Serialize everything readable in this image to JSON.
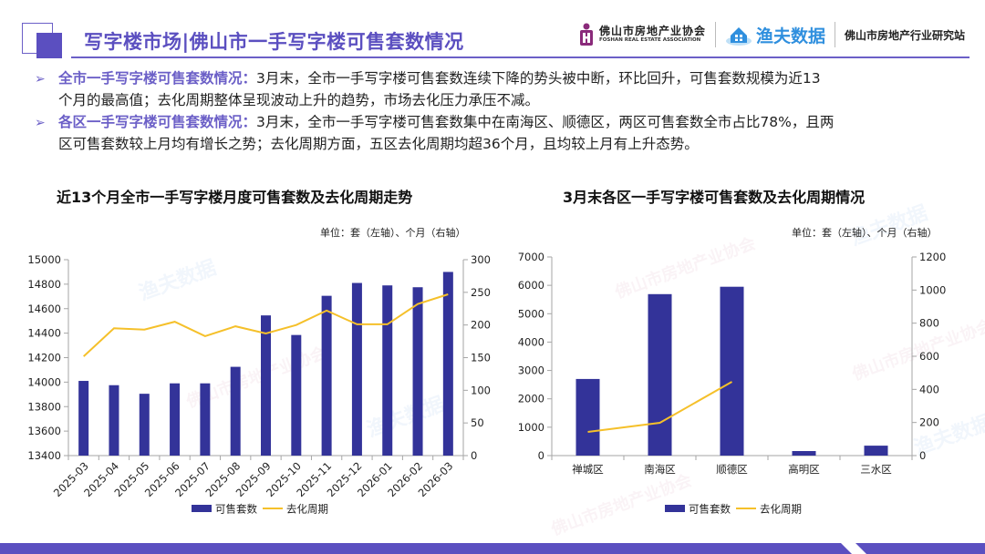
{
  "header": {
    "title": "写字楼市场|佛山市一手写字楼可售套数情况",
    "logos": {
      "association_cn": "佛山市房地产业协会",
      "association_en": "FOSHAN REAL ESTATE ASSOCIATION",
      "brand": "渔夫数据",
      "station": "佛山市房地产行业研究站"
    }
  },
  "bullets": [
    {
      "head": "全市一手写字楼可售套数情况：",
      "line1": "3月末，全市一手写字楼可售套数连续下降的势头被中断，环比回升，可售套数规模为近13",
      "line2": "个月的最高值；去化周期整体呈现波动上升的趋势，市场去化压力承压不减。"
    },
    {
      "head": "各区一手写字楼可售套数情况：",
      "line1": "3月末，全市一手写字楼可售套数集中在南海区、顺德区，两区可售套数全市占比78%，且两",
      "line2": "区可售套数较上月均有增长之势；去化周期方面，五区去化周期均超36个月，且均较上月有上升态势。"
    }
  ],
  "colors": {
    "accent": "#5b4fc0",
    "bar": "#333399",
    "line": "#f5c02a"
  },
  "chart_data": [
    {
      "type": "bar",
      "title": "近13个月全市一手写字楼月度可售套数及去化周期走势",
      "unit_note": "单位：套（左轴）、个月（右轴）",
      "categories": [
        "2025-03",
        "2025-04",
        "2025-05",
        "2025-06",
        "2025-07",
        "2025-08",
        "2025-09",
        "2025-10",
        "2025-11",
        "2025-12",
        "2026-01",
        "2026-02",
        "2026-03"
      ],
      "series": [
        {
          "name": "可售套数",
          "type": "bar",
          "axis": "left",
          "values": [
            14010,
            13975,
            13905,
            13990,
            13990,
            14125,
            14545,
            14385,
            14705,
            14810,
            14790,
            14775,
            14900
          ]
        },
        {
          "name": "去化周期",
          "type": "line",
          "axis": "right",
          "values": [
            152,
            195,
            193,
            205,
            183,
            198,
            187,
            200,
            222,
            201,
            201,
            232,
            247
          ]
        }
      ],
      "left_axis": {
        "min": 13400,
        "max": 15000,
        "ticks": [
          13400,
          13600,
          13800,
          14000,
          14200,
          14400,
          14600,
          14800,
          15000
        ]
      },
      "right_axis": {
        "min": 0,
        "max": 300,
        "ticks": [
          0,
          50,
          100,
          150,
          200,
          250,
          300
        ]
      },
      "legend": [
        "可售套数",
        "去化周期"
      ],
      "legend_position": "bottom",
      "grid": false
    },
    {
      "type": "bar",
      "title": "3月末各区一手写字楼可售套数及去化周期情况",
      "unit_note": "单位：套（左轴）、个月（右轴）",
      "categories": [
        "禅城区",
        "南海区",
        "顺德区",
        "高明区",
        "三水区"
      ],
      "series": [
        {
          "name": "可售套数",
          "type": "bar",
          "axis": "left",
          "values": [
            2700,
            5690,
            5950,
            160,
            350
          ]
        },
        {
          "name": "去化周期",
          "type": "line",
          "axis": "right",
          "values": [
            143,
            198,
            446,
            null,
            null
          ]
        }
      ],
      "left_axis": {
        "min": 0,
        "max": 7000,
        "ticks": [
          0,
          1000,
          2000,
          3000,
          4000,
          5000,
          6000,
          7000
        ]
      },
      "right_axis": {
        "min": 0,
        "max": 1200,
        "ticks": [
          0,
          200,
          400,
          600,
          800,
          1000,
          1200
        ]
      },
      "legend": [
        "可售套数",
        "去化周期"
      ],
      "legend_position": "bottom",
      "grid": false
    }
  ]
}
